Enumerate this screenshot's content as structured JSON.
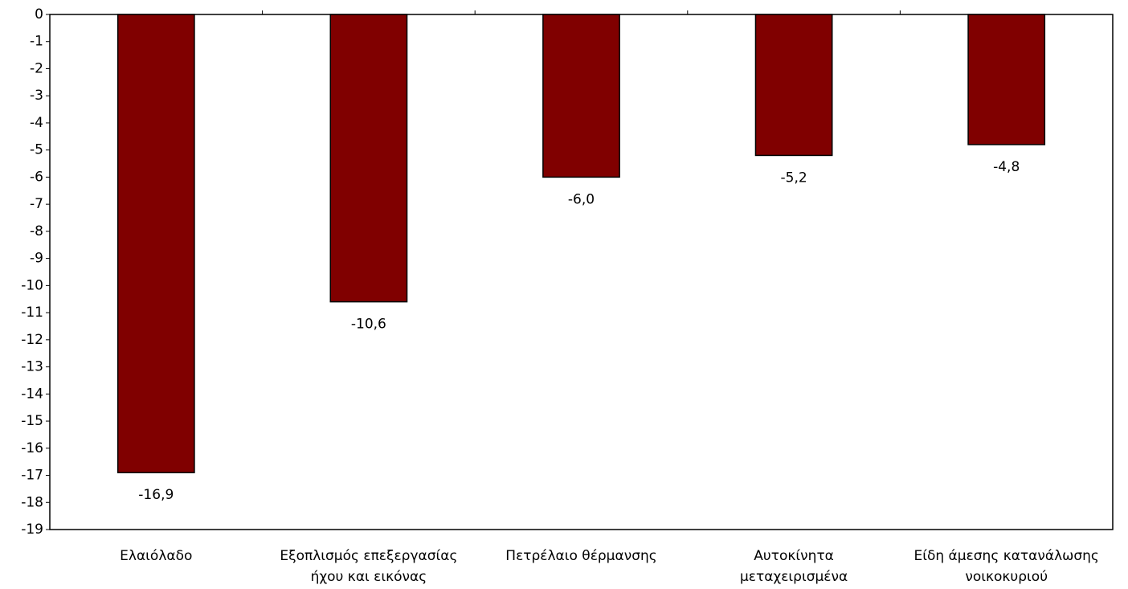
{
  "chart_data": {
    "type": "bar",
    "categories": [
      "Ελαιόλαδο",
      "Εξοπλισμός επεξεργασίας\nήχου και εικόνας",
      "Πετρέλαιο θέρμανσης",
      "Αυτοκίνητα\nμεταχειρισμένα",
      "Είδη άμεσης κατανάλωσης\nνοικοκυριού"
    ],
    "values": [
      -16.9,
      -10.6,
      -6.0,
      -5.2,
      -4.8
    ],
    "value_labels": [
      "-16,9",
      "-10,6",
      "-6,0",
      "-5,2",
      "-4,8"
    ],
    "color": "#800000",
    "ylim": [
      -19,
      0
    ],
    "yticks": [
      0,
      -1,
      -2,
      -3,
      -4,
      -5,
      -6,
      -7,
      -8,
      -9,
      -10,
      -11,
      -12,
      -13,
      -14,
      -15,
      -16,
      -17,
      -18,
      -19
    ],
    "grid": false
  }
}
